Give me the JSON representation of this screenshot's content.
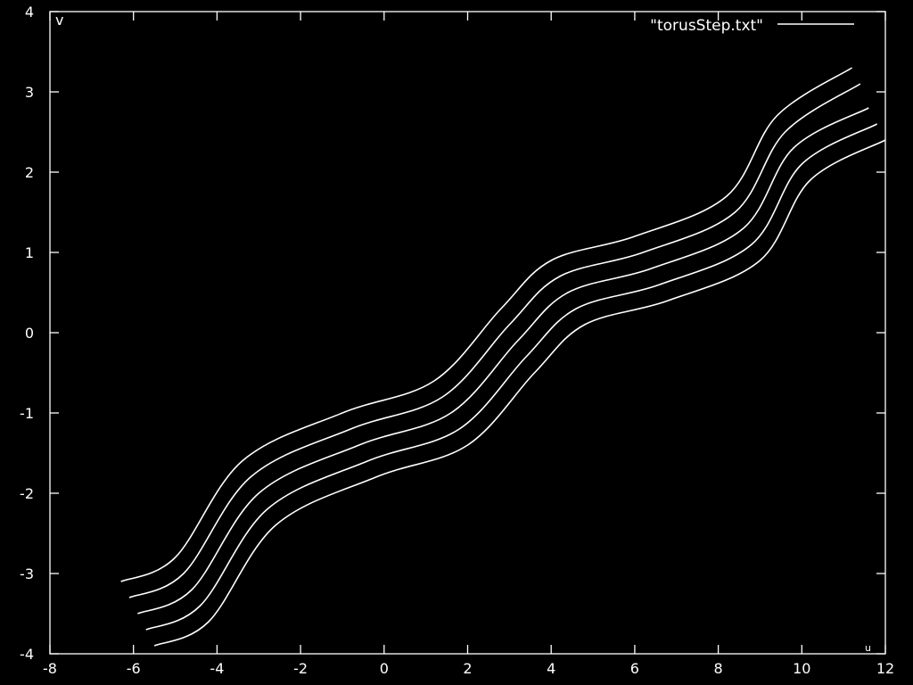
{
  "colors": {
    "background": "#000000",
    "foreground": "#ffffff"
  },
  "chart_data": {
    "type": "line",
    "title": "",
    "xlabel": "",
    "ylabel": "v",
    "corner_label": "u",
    "xlim": [
      -8,
      12
    ],
    "ylim": [
      -4,
      4
    ],
    "xticks": [
      "-8",
      "-6",
      "-4",
      "-2",
      "0",
      "2",
      "4",
      "6",
      "8",
      "10",
      "12"
    ],
    "yticks": [
      "-4",
      "-3",
      "-2",
      "-1",
      "0",
      "1",
      "2",
      "3",
      "4"
    ],
    "legend": {
      "label": "\"torusStep.txt\"",
      "position": "top-right"
    },
    "grid": false,
    "series": [
      {
        "x": [
          -6.3,
          -5.0,
          -3.4,
          -1.0,
          1.2,
          2.8,
          4.0,
          6.0,
          8.2,
          9.4,
          11.2
        ],
        "y": [
          -3.1,
          -2.8,
          -1.6,
          -1.0,
          -0.6,
          0.3,
          0.9,
          1.2,
          1.7,
          2.7,
          3.3
        ]
      },
      {
        "x": [
          -6.1,
          -4.8,
          -3.2,
          -0.8,
          1.4,
          3.0,
          4.2,
          6.2,
          8.4,
          9.6,
          11.4
        ],
        "y": [
          -3.3,
          -3.0,
          -1.8,
          -1.2,
          -0.8,
          0.1,
          0.7,
          1.0,
          1.5,
          2.5,
          3.1
        ]
      },
      {
        "x": [
          -5.9,
          -4.6,
          -3.0,
          -0.6,
          1.6,
          3.2,
          4.4,
          6.4,
          8.6,
          9.8,
          11.6
        ],
        "y": [
          -3.5,
          -3.2,
          -2.0,
          -1.4,
          -1.0,
          -0.1,
          0.5,
          0.8,
          1.3,
          2.3,
          2.8
        ]
      },
      {
        "x": [
          -5.7,
          -4.4,
          -2.8,
          -0.4,
          1.8,
          3.4,
          4.6,
          6.6,
          8.8,
          10.0,
          11.8
        ],
        "y": [
          -3.7,
          -3.4,
          -2.2,
          -1.6,
          -1.2,
          -0.3,
          0.3,
          0.6,
          1.1,
          2.1,
          2.6
        ]
      },
      {
        "x": [
          -5.5,
          -4.2,
          -2.6,
          -0.2,
          2.0,
          3.6,
          4.8,
          6.8,
          9.0,
          10.2,
          12.0
        ],
        "y": [
          -3.9,
          -3.6,
          -2.4,
          -1.8,
          -1.4,
          -0.5,
          0.1,
          0.4,
          0.9,
          1.9,
          2.4
        ]
      }
    ]
  }
}
